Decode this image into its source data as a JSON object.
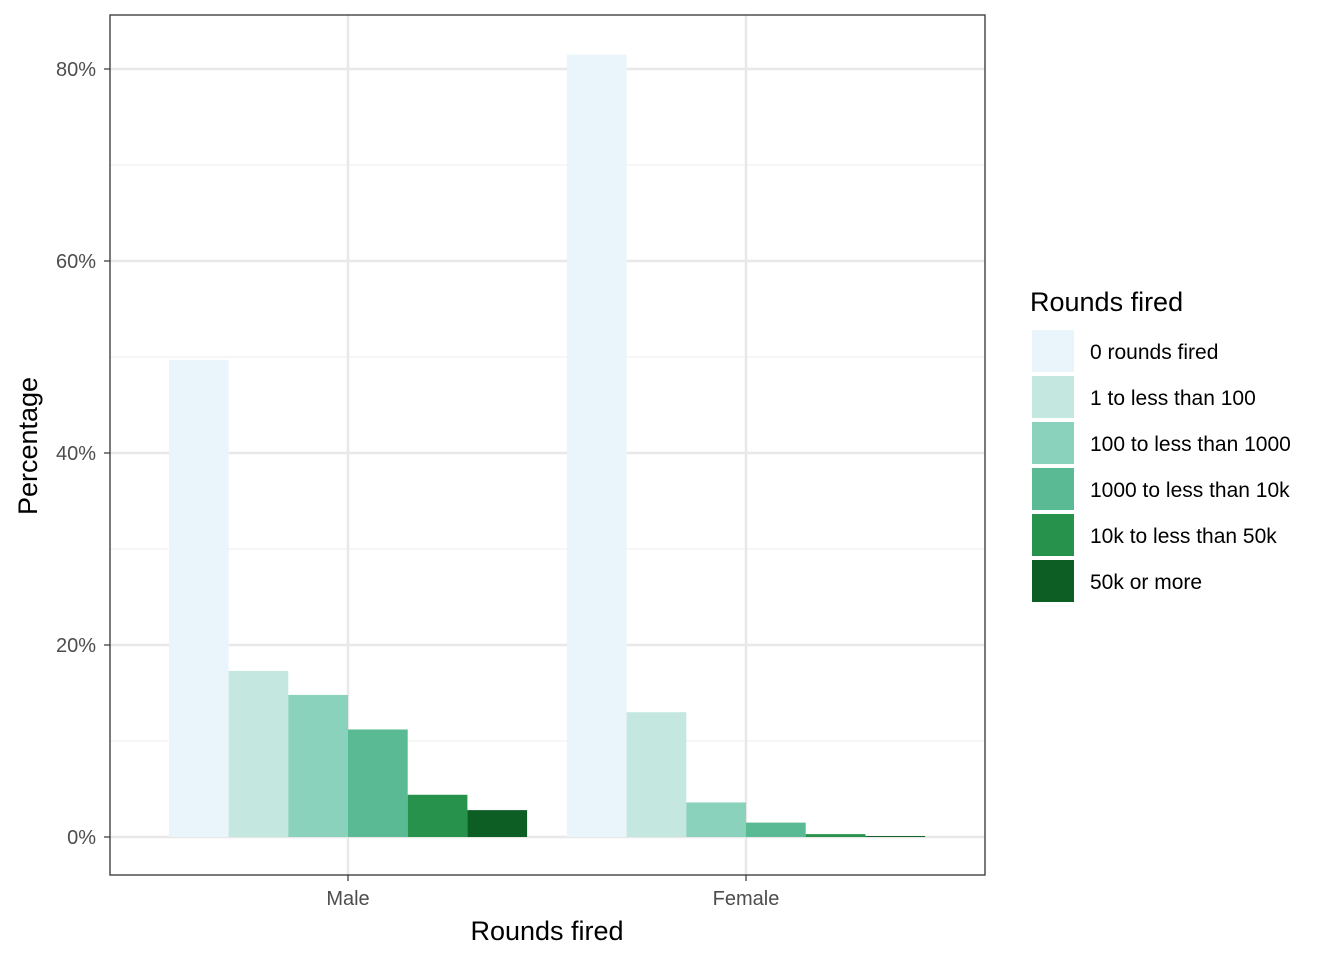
{
  "chart_data": {
    "type": "bar",
    "xlabel": "Rounds fired",
    "ylabel": "Percentage",
    "ylim": [
      0,
      85
    ],
    "y_tick_values": [
      0,
      20,
      40,
      60,
      80
    ],
    "y_tick_labels": [
      "0%",
      "20%",
      "40%",
      "60%",
      "80%"
    ],
    "grid": true,
    "categories": [
      "Male",
      "Female"
    ],
    "legend": {
      "title": "Rounds fired",
      "placement": "right"
    },
    "series": [
      {
        "name": "0 rounds fired",
        "color": "#e9f5fa",
        "values": [
          49.7,
          81.5
        ]
      },
      {
        "name": "1 to less than 100",
        "color": "#c4e8df",
        "values": [
          17.3,
          13.0
        ]
      },
      {
        "name": "100 to less than 1000",
        "color": "#8bd2bd",
        "values": [
          14.8,
          3.6
        ]
      },
      {
        "name": "1000 to less than 10k",
        "color": "#5aba93",
        "values": [
          11.2,
          1.5
        ]
      },
      {
        "name": "10k to less than 50k",
        "color": "#26924b",
        "values": [
          4.4,
          0.3
        ]
      },
      {
        "name": "50k or more",
        "color": "#0d5e24",
        "values": [
          2.8,
          0.1
        ]
      }
    ]
  }
}
